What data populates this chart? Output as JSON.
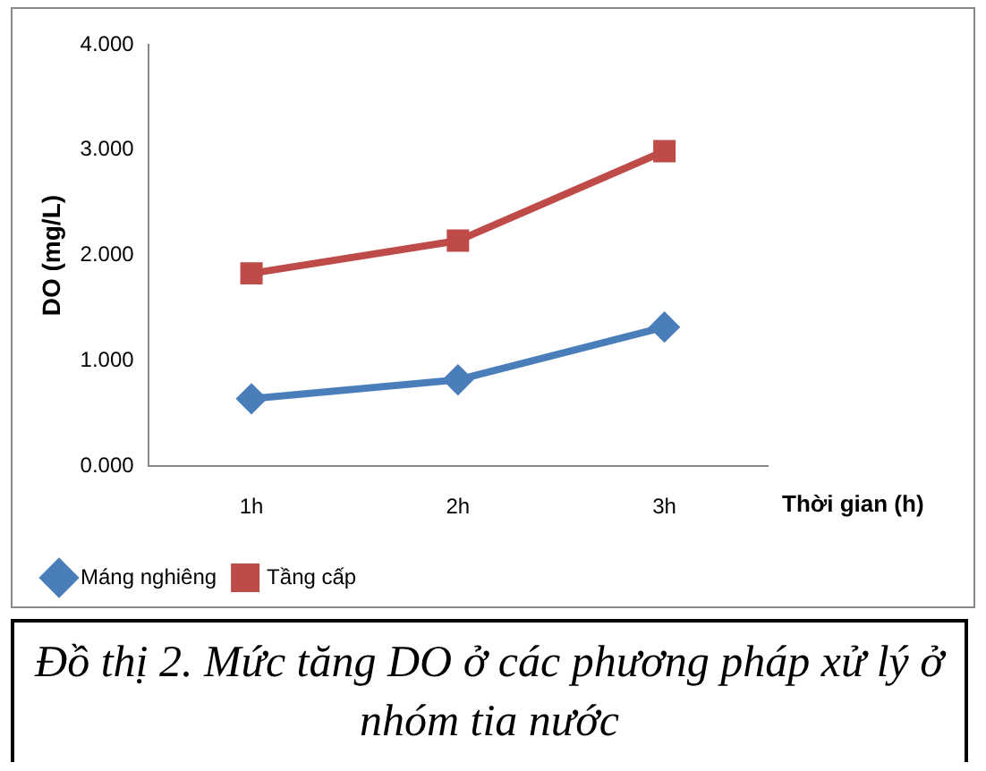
{
  "chart_data": {
    "type": "line",
    "title": "Đồ thị 2. Mức tăng DO ở các phương pháp xử lý ở nhóm tia nước",
    "xlabel": "Thời gian (h)",
    "ylabel": "DO (mg/L)",
    "categories": [
      "1h",
      "2h",
      "3h"
    ],
    "series": [
      {
        "name": "Máng nghiêng",
        "color": "#4a7ebb",
        "values": [
          0.64,
          0.82,
          1.32
        ],
        "marker": "diamond"
      },
      {
        "name": "Tầng cấp",
        "color": "#be4b48",
        "values": [
          1.83,
          2.14,
          2.99
        ],
        "marker": "square"
      }
    ],
    "ylim": [
      0,
      4
    ],
    "yticks": [
      {
        "value": 0,
        "label": "0.000"
      },
      {
        "value": 1,
        "label": "1.000"
      },
      {
        "value": 2,
        "label": "2.000"
      },
      {
        "value": 3,
        "label": "3.000"
      },
      {
        "value": 4,
        "label": "4.000"
      }
    ],
    "grid": false,
    "legend": "bottom"
  }
}
